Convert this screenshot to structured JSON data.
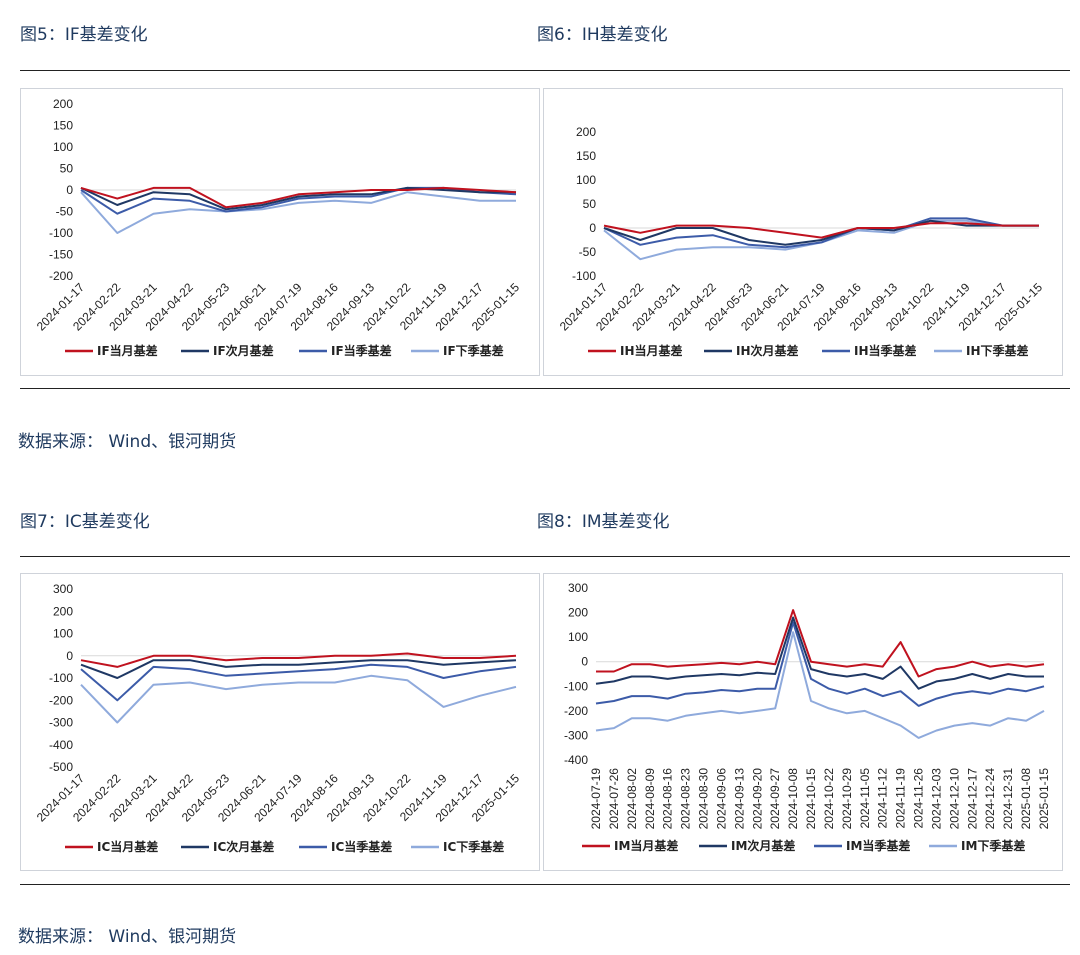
{
  "captions": {
    "fig5": "图5：IF基差变化",
    "fig6": "图6：IH基差变化",
    "fig7": "图7：IC基差变化",
    "fig8": "图8：IM基差变化"
  },
  "source_top": "数据来源： Wind、银河期货",
  "source_bottom": "数据来源： Wind、银河期货",
  "colors": {
    "s1": "#c0121f",
    "s2": "#1f3864",
    "s3": "#3c5ba8",
    "s4": "#8faadc"
  },
  "chart_data": [
    {
      "id": "if",
      "type": "line",
      "title": "",
      "x": [
        "2024-01-17",
        "2024-02-22",
        "2024-03-21",
        "2024-04-22",
        "2024-05-23",
        "2024-06-21",
        "2024-07-19",
        "2024-08-16",
        "2024-09-13",
        "2024-10-22",
        "2024-11-19",
        "2024-12-17",
        "2025-01-15"
      ],
      "ylim": [
        -200,
        200
      ],
      "yticks": [
        200,
        150,
        100,
        50,
        0,
        -50,
        -100,
        -150,
        -200
      ],
      "series": [
        {
          "name": "IF当月基差",
          "values": [
            5,
            -20,
            5,
            5,
            -40,
            -30,
            -10,
            -5,
            0,
            0,
            5,
            0,
            -5
          ]
        },
        {
          "name": "IF次月基差",
          "values": [
            5,
            -35,
            -5,
            -10,
            -45,
            -35,
            -15,
            -10,
            -10,
            5,
            0,
            -5,
            -5
          ]
        },
        {
          "name": "IF当季基差",
          "values": [
            0,
            -55,
            -20,
            -25,
            -50,
            -40,
            -20,
            -15,
            -15,
            5,
            5,
            -5,
            -10
          ]
        },
        {
          "name": "IF下季基差",
          "values": [
            -5,
            -100,
            -55,
            -45,
            -50,
            -45,
            -30,
            -25,
            -30,
            -5,
            -15,
            -25,
            -25
          ]
        }
      ]
    },
    {
      "id": "ih",
      "type": "line",
      "title": "",
      "x": [
        "2024-01-17",
        "2024-02-22",
        "2024-03-21",
        "2024-04-22",
        "2024-05-23",
        "2024-06-21",
        "2024-07-19",
        "2024-08-16",
        "2024-09-13",
        "2024-10-22",
        "2024-11-19",
        "2024-12-17",
        "2025-01-15"
      ],
      "ylim": [
        -100,
        200
      ],
      "yticks": [
        200,
        150,
        100,
        50,
        0,
        -50,
        -100
      ],
      "series": [
        {
          "name": "IH当月基差",
          "values": [
            5,
            -10,
            5,
            5,
            0,
            -10,
            -20,
            0,
            0,
            10,
            10,
            5,
            5
          ]
        },
        {
          "name": "IH次月基差",
          "values": [
            0,
            -25,
            0,
            0,
            -25,
            -35,
            -25,
            0,
            -5,
            15,
            5,
            5,
            5
          ]
        },
        {
          "name": "IH当季基差",
          "values": [
            0,
            -35,
            -20,
            -15,
            -35,
            -40,
            -30,
            0,
            -5,
            20,
            20,
            5,
            5
          ]
        },
        {
          "name": "IH下季基差",
          "values": [
            -5,
            -65,
            -45,
            -40,
            -40,
            -45,
            -30,
            -5,
            -10,
            15,
            15,
            5,
            5
          ]
        }
      ]
    },
    {
      "id": "ic",
      "type": "line",
      "title": "",
      "x": [
        "2024-01-17",
        "2024-02-22",
        "2024-03-21",
        "2024-04-22",
        "2024-05-23",
        "2024-06-21",
        "2024-07-19",
        "2024-08-16",
        "2024-09-13",
        "2024-10-22",
        "2024-11-19",
        "2024-12-17",
        "2025-01-15"
      ],
      "ylim": [
        -500,
        300
      ],
      "yticks": [
        300,
        200,
        100,
        0,
        -100,
        -200,
        -300,
        -400,
        -500
      ],
      "series": [
        {
          "name": "IC当月基差",
          "values": [
            -20,
            -50,
            0,
            0,
            -20,
            -10,
            -10,
            0,
            0,
            10,
            -10,
            -10,
            0
          ]
        },
        {
          "name": "IC次月基差",
          "values": [
            -40,
            -100,
            -20,
            -20,
            -50,
            -40,
            -40,
            -30,
            -20,
            -20,
            -40,
            -30,
            -20
          ]
        },
        {
          "name": "IC当季基差",
          "values": [
            -60,
            -200,
            -50,
            -60,
            -90,
            -80,
            -70,
            -60,
            -40,
            -50,
            -100,
            -70,
            -50
          ]
        },
        {
          "name": "IC下季基差",
          "values": [
            -130,
            -300,
            -130,
            -120,
            -150,
            -130,
            -120,
            -120,
            -90,
            -110,
            -230,
            -180,
            -140
          ]
        }
      ]
    },
    {
      "id": "im",
      "type": "line",
      "title": "",
      "x": [
        "2024-07-19",
        "2024-07-26",
        "2024-08-02",
        "2024-08-09",
        "2024-08-16",
        "2024-08-23",
        "2024-08-30",
        "2024-09-06",
        "2024-09-13",
        "2024-09-20",
        "2024-09-27",
        "2024-10-08",
        "2024-10-15",
        "2024-10-22",
        "2024-10-29",
        "2024-11-05",
        "2024-11-12",
        "2024-11-19",
        "2024-11-26",
        "2024-12-03",
        "2024-12-10",
        "2024-12-17",
        "2024-12-24",
        "2024-12-31",
        "2025-01-08",
        "2025-01-15"
      ],
      "ylim": [
        -400,
        300
      ],
      "yticks": [
        300,
        200,
        100,
        0,
        -100,
        -200,
        -300,
        -400
      ],
      "series": [
        {
          "name": "IM当月基差",
          "values": [
            -40,
            -40,
            -10,
            -10,
            -20,
            -15,
            -10,
            -5,
            -10,
            0,
            -10,
            210,
            0,
            -10,
            -20,
            -10,
            -20,
            80,
            -60,
            -30,
            -20,
            0,
            -20,
            -10,
            -20,
            -10
          ]
        },
        {
          "name": "IM次月基差",
          "values": [
            -90,
            -80,
            -60,
            -60,
            -70,
            -60,
            -55,
            -50,
            -55,
            -45,
            -50,
            180,
            -30,
            -50,
            -60,
            -50,
            -70,
            -20,
            -110,
            -80,
            -70,
            -50,
            -70,
            -50,
            -60,
            -60
          ]
        },
        {
          "name": "IM当季基差",
          "values": [
            -170,
            -160,
            -140,
            -140,
            -150,
            -130,
            -125,
            -115,
            -120,
            -110,
            -110,
            160,
            -70,
            -110,
            -130,
            -110,
            -140,
            -120,
            -180,
            -150,
            -130,
            -120,
            -130,
            -110,
            -120,
            -100
          ]
        },
        {
          "name": "IM下季基差",
          "values": [
            -280,
            -270,
            -230,
            -230,
            -240,
            -220,
            -210,
            -200,
            -210,
            -200,
            -190,
            120,
            -160,
            -190,
            -210,
            -200,
            -230,
            -260,
            -310,
            -280,
            -260,
            -250,
            -260,
            -230,
            -240,
            -200
          ]
        }
      ]
    }
  ]
}
